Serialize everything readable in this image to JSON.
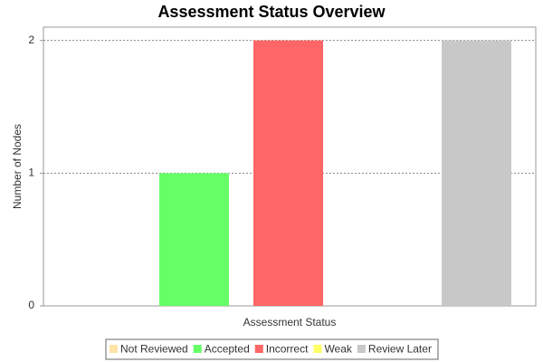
{
  "chart_data": {
    "type": "bar",
    "title": "Assessment Status Overview",
    "x_label": "Assessment Status",
    "y_label": "Number of Nodes",
    "categories": [
      null
    ],
    "series": [
      {
        "name": "Not Reviewed",
        "color": "#ffe4a8",
        "values": [
          0
        ]
      },
      {
        "name": "Accepted",
        "color": "#66ff66",
        "values": [
          1
        ]
      },
      {
        "name": "Incorrect",
        "color": "#ff6666",
        "values": [
          2
        ]
      },
      {
        "name": "Weak",
        "color": "#ffff66",
        "values": [
          0
        ]
      },
      {
        "name": "Review Later",
        "color": "#c8c8c8",
        "values": [
          2
        ]
      }
    ],
    "ylim": [
      0,
      2.1
    ],
    "yticks": [
      0,
      1,
      2
    ],
    "grid": true,
    "legend": "bottom"
  }
}
